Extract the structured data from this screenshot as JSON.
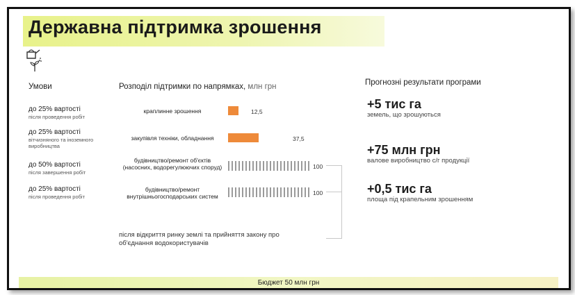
{
  "title": "Державна підтримка зрошення",
  "icon": "watering-can-plant-icon",
  "conditions_header": "Умови",
  "conditions": [
    {
      "main": "до 25% вартості",
      "sub": "після проведення робіт"
    },
    {
      "main": "до 25% вартості",
      "sub": "вітчизняного та іноземного виробництва"
    },
    {
      "main": "до 50% вартості",
      "sub": "після завершення робіт"
    },
    {
      "main": "до 25% вартості",
      "sub": "після проведення робіт"
    }
  ],
  "distribution": {
    "header": "Розподіл підтримки по напрямках,",
    "unit": "млн грн",
    "rows": [
      {
        "label": "краплинне зрошення",
        "value": "12,5",
        "style": "solid",
        "color": "#ee8a3a",
        "amount": 12.5
      },
      {
        "label": "закупівля техніки, обладнання",
        "value": "37,5",
        "style": "solid",
        "color": "#ee8a3a",
        "amount": 37.5
      },
      {
        "label": "будівництво/ремонт об'єктів (насосних, водорегулюючих споруд)",
        "value": "100",
        "style": "hatched",
        "color": "#9a9a9a",
        "amount": 100
      },
      {
        "label": "будівництво/ремонт внутрішньогосподарських систем",
        "value": "100",
        "style": "hatched",
        "color": "#9a9a9a",
        "amount": 100
      }
    ],
    "note": "після відкриття ринку землі та прийняття закону про об'єднання водокористувачів"
  },
  "results": {
    "header": "Прогнозні результати програми",
    "items": [
      {
        "big": "+5 тис га",
        "sub": "земель, що зрошуються"
      },
      {
        "big": "+75 млн грн",
        "sub": "валове виробництво с/г продукції"
      },
      {
        "big": "+0,5 тис га",
        "sub": "площа під крапельним зрошенням"
      }
    ]
  },
  "budget": "Бюджет 50 млн грн"
}
